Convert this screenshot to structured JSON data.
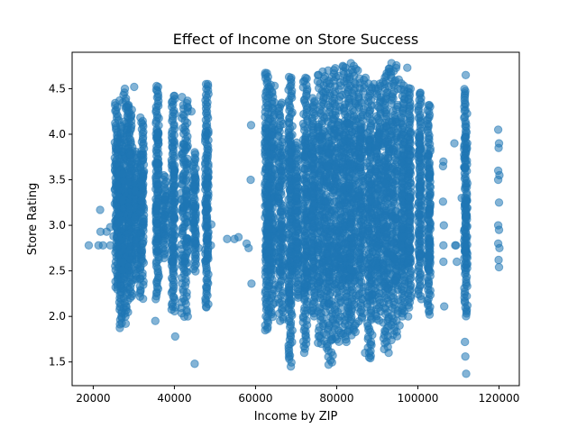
{
  "chart_data": {
    "type": "scatter",
    "title": "Effect of Income on Store Success",
    "xlabel": "Income by ZIP",
    "ylabel": "Store Rating",
    "xlim": [
      14800,
      125000
    ],
    "ylim": [
      1.24,
      4.9
    ],
    "xticks": [
      20000,
      40000,
      60000,
      80000,
      100000,
      120000
    ],
    "xtick_labels": [
      "20000",
      "40000",
      "60000",
      "80000",
      "100000",
      "120000"
    ],
    "yticks": [
      1.5,
      2.0,
      2.5,
      3.0,
      3.5,
      4.0,
      4.5
    ],
    "ytick_labels": [
      "1.5",
      "2.0",
      "2.5",
      "3.0",
      "3.5",
      "4.0",
      "4.5"
    ],
    "grid": false,
    "legend": "none",
    "marker_color": "#1f77b4",
    "marker_alpha": 0.55,
    "series": [
      {
        "points": [
          [
            18900,
            2.78
          ],
          [
            21300,
            2.78
          ],
          [
            21700,
            3.17
          ],
          [
            21800,
            2.93
          ],
          [
            22400,
            2.78
          ],
          [
            23300,
            2.93
          ],
          [
            24200,
            2.78
          ],
          [
            25000,
            2.88
          ],
          [
            32200,
            2.8
          ],
          [
            24200,
            2.98
          ],
          [
            45000,
            1.48
          ],
          [
            45300,
            2.8
          ],
          [
            46000,
            2.75
          ],
          [
            49000,
            2.78
          ],
          [
            49100,
            3.01
          ],
          [
            53000,
            2.85
          ],
          [
            54800,
            2.85
          ],
          [
            55800,
            2.87
          ],
          [
            57800,
            2.8
          ],
          [
            58300,
            2.75
          ],
          [
            59000,
            2.36
          ],
          [
            58900,
            4.1
          ],
          [
            58800,
            3.5
          ],
          [
            106300,
            3.7
          ],
          [
            106200,
            3.65
          ],
          [
            106200,
            3.26
          ],
          [
            106400,
            3.0
          ],
          [
            106300,
            2.78
          ],
          [
            106300,
            2.6
          ],
          [
            106500,
            2.11
          ],
          [
            109000,
            3.9
          ],
          [
            109200,
            2.78
          ],
          [
            109400,
            2.78
          ],
          [
            119800,
            4.05
          ],
          [
            120000,
            3.9
          ],
          [
            119900,
            3.85
          ],
          [
            119800,
            3.6
          ],
          [
            120100,
            3.55
          ],
          [
            119800,
            3.5
          ],
          [
            120000,
            3.25
          ],
          [
            119800,
            3.0
          ],
          [
            120000,
            2.95
          ],
          [
            119800,
            2.8
          ],
          [
            120100,
            2.75
          ],
          [
            119900,
            2.62
          ],
          [
            120000,
            2.54
          ],
          [
            27800,
            4.5
          ],
          [
            28100,
            4.3
          ],
          [
            28400,
            4.05
          ],
          [
            28000,
            1.92
          ],
          [
            26500,
            4.37
          ],
          [
            27500,
            2.09
          ],
          [
            30100,
            4.52
          ],
          [
            25500,
            2.32
          ],
          [
            35300,
            1.95
          ],
          [
            36000,
            4.52
          ],
          [
            37200,
            3.2
          ],
          [
            39900,
            4.42
          ],
          [
            40200,
            1.78
          ],
          [
            40300,
            2.1
          ],
          [
            43300,
            4.3
          ],
          [
            43300,
            2.0
          ],
          [
            44200,
            4.25
          ],
          [
            47800,
            4.55
          ],
          [
            47900,
            2.1
          ],
          [
            48000,
            2.32
          ],
          [
            62800,
            4.67
          ],
          [
            62900,
            1.86
          ],
          [
            68700,
            1.45
          ],
          [
            68800,
            4.62
          ],
          [
            72000,
            1.6
          ],
          [
            72300,
            4.62
          ],
          [
            75500,
            4.65
          ],
          [
            76200,
            1.7
          ],
          [
            77900,
            4.7
          ],
          [
            78000,
            1.47
          ],
          [
            79000,
            1.75
          ],
          [
            81500,
            4.75
          ],
          [
            82400,
            1.72
          ],
          [
            83500,
            4.78
          ],
          [
            84200,
            1.85
          ],
          [
            85200,
            4.7
          ],
          [
            87000,
            1.6
          ],
          [
            87100,
            4.62
          ],
          [
            88000,
            1.55
          ],
          [
            89200,
            4.55
          ],
          [
            90200,
            4.5
          ],
          [
            92800,
            1.6
          ],
          [
            93000,
            4.72
          ],
          [
            93500,
            4.78
          ],
          [
            95500,
            1.9
          ],
          [
            95300,
            4.6
          ],
          [
            97400,
            4.73
          ],
          [
            97600,
            2.0
          ],
          [
            98200,
            4.5
          ],
          [
            100500,
            4.45
          ],
          [
            102800,
            4.32
          ],
          [
            102900,
            2.02
          ],
          [
            111800,
            4.65
          ],
          [
            111600,
            1.72
          ],
          [
            111900,
            1.37
          ],
          [
            111700,
            1.56
          ],
          [
            109600,
            2.6
          ],
          [
            110800,
            3.3
          ]
        ],
        "vertical_bands": [
          {
            "x": 25800,
            "y_min": 2.3,
            "y_max": 4.35,
            "jitter": 500
          },
          {
            "x": 26800,
            "y_min": 1.88,
            "y_max": 4.1,
            "jitter": 400
          },
          {
            "x": 28000,
            "y_min": 2.0,
            "y_max": 4.45,
            "jitter": 700
          },
          {
            "x": 29200,
            "y_min": 2.2,
            "y_max": 4.32,
            "jitter": 500
          },
          {
            "x": 30600,
            "y_min": 2.4,
            "y_max": 3.8,
            "jitter": 400
          },
          {
            "x": 32000,
            "y_min": 2.2,
            "y_max": 4.18,
            "jitter": 500
          },
          {
            "x": 35800,
            "y_min": 2.2,
            "y_max": 4.52,
            "jitter": 400
          },
          {
            "x": 37600,
            "y_min": 2.65,
            "y_max": 3.55,
            "jitter": 500
          },
          {
            "x": 39700,
            "y_min": 2.05,
            "y_max": 4.42,
            "jitter": 400
          },
          {
            "x": 42500,
            "y_min": 2.0,
            "y_max": 4.4,
            "jitter": 800
          },
          {
            "x": 44900,
            "y_min": 2.5,
            "y_max": 3.8,
            "jitter": 400
          },
          {
            "x": 48000,
            "y_min": 2.1,
            "y_max": 4.55,
            "jitter": 400
          },
          {
            "x": 62800,
            "y_min": 1.85,
            "y_max": 4.68,
            "jitter": 500
          },
          {
            "x": 64000,
            "y_min": 2.0,
            "y_max": 4.55,
            "jitter": 700
          },
          {
            "x": 66200,
            "y_min": 1.95,
            "y_max": 4.35,
            "jitter": 700
          },
          {
            "x": 68600,
            "y_min": 1.5,
            "y_max": 4.62,
            "jitter": 500
          },
          {
            "x": 70200,
            "y_min": 2.2,
            "y_max": 3.9,
            "jitter": 400
          },
          {
            "x": 72300,
            "y_min": 1.65,
            "y_max": 4.62,
            "jitter": 600
          },
          {
            "x": 74200,
            "y_min": 2.0,
            "y_max": 4.4,
            "jitter": 500
          },
          {
            "x": 76200,
            "y_min": 1.7,
            "y_max": 4.68,
            "jitter": 900
          },
          {
            "x": 78200,
            "y_min": 1.5,
            "y_max": 4.62,
            "jitter": 900
          },
          {
            "x": 80200,
            "y_min": 1.72,
            "y_max": 4.72,
            "jitter": 900
          },
          {
            "x": 82200,
            "y_min": 1.75,
            "y_max": 4.75,
            "jitter": 900
          },
          {
            "x": 84000,
            "y_min": 1.8,
            "y_max": 4.75,
            "jitter": 900
          },
          {
            "x": 86000,
            "y_min": 1.95,
            "y_max": 4.62,
            "jitter": 800
          },
          {
            "x": 88200,
            "y_min": 1.55,
            "y_max": 4.55,
            "jitter": 700
          },
          {
            "x": 90200,
            "y_min": 1.95,
            "y_max": 4.55,
            "jitter": 700
          },
          {
            "x": 92200,
            "y_min": 1.65,
            "y_max": 4.72,
            "jitter": 800
          },
          {
            "x": 94200,
            "y_min": 1.75,
            "y_max": 4.75,
            "jitter": 900
          },
          {
            "x": 96300,
            "y_min": 2.0,
            "y_max": 4.55,
            "jitter": 500
          },
          {
            "x": 97900,
            "y_min": 2.1,
            "y_max": 4.5,
            "jitter": 400
          },
          {
            "x": 100500,
            "y_min": 2.2,
            "y_max": 4.45,
            "jitter": 400
          },
          {
            "x": 102700,
            "y_min": 2.05,
            "y_max": 4.32,
            "jitter": 400
          },
          {
            "x": 111800,
            "y_min": 2.0,
            "y_max": 4.5,
            "jitter": 400
          }
        ]
      }
    ]
  }
}
